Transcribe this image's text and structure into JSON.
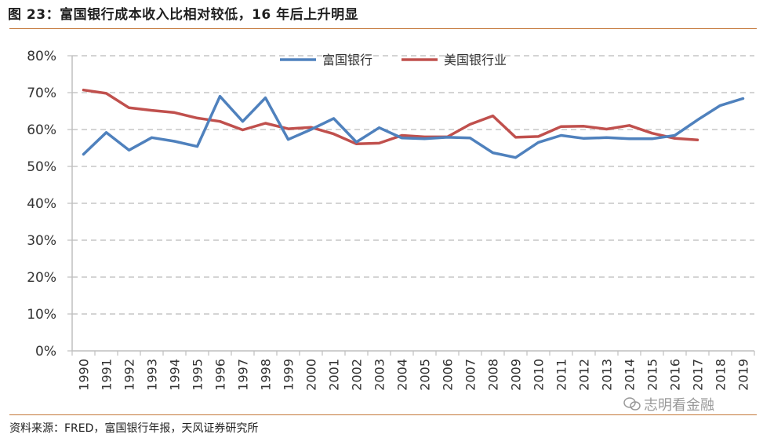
{
  "header": {
    "title": "图 23：富国银行成本收入比相对较低，16 年后上升明显"
  },
  "footer": {
    "source": "资料来源：FRED，富国银行年报，天风证券研究所"
  },
  "watermark": {
    "text": "志明看金融"
  },
  "chart_data": {
    "type": "line",
    "title": "",
    "xlabel": "",
    "ylabel": "",
    "ylim": [
      0,
      80
    ],
    "y_ticks": [
      "0%",
      "10%",
      "20%",
      "30%",
      "40%",
      "50%",
      "60%",
      "70%",
      "80%"
    ],
    "grid": true,
    "legend_position": "top-center",
    "categories": [
      "1990",
      "1991",
      "1992",
      "1993",
      "1994",
      "1995",
      "1996",
      "1997",
      "1998",
      "1999",
      "2000",
      "2001",
      "2002",
      "2003",
      "2004",
      "2005",
      "2006",
      "2007",
      "2008",
      "2009",
      "2010",
      "2011",
      "2012",
      "2013",
      "2014",
      "2015",
      "2016",
      "2017",
      "2018",
      "2019"
    ],
    "series": [
      {
        "name": "富国银行",
        "color": "#4f81bd",
        "values": [
          53.3,
          59.2,
          54.4,
          57.8,
          56.8,
          55.4,
          69.0,
          62.2,
          68.6,
          57.3,
          60.0,
          63.0,
          56.6,
          60.5,
          57.7,
          57.5,
          57.9,
          57.7,
          53.7,
          52.4,
          56.5,
          58.4,
          57.6,
          57.8,
          57.5,
          57.5,
          58.4,
          62.6,
          66.5,
          68.4
        ]
      },
      {
        "name": "美国银行业",
        "color": "#c0504d",
        "values": [
          70.7,
          69.8,
          65.9,
          65.2,
          64.6,
          63.1,
          62.2,
          59.9,
          61.7,
          60.2,
          60.6,
          58.8,
          56.1,
          56.3,
          58.4,
          58.0,
          58.0,
          61.4,
          63.7,
          57.9,
          58.1,
          60.8,
          60.9,
          60.1,
          61.1,
          59.0,
          57.6,
          57.2,
          null,
          null
        ]
      }
    ]
  }
}
